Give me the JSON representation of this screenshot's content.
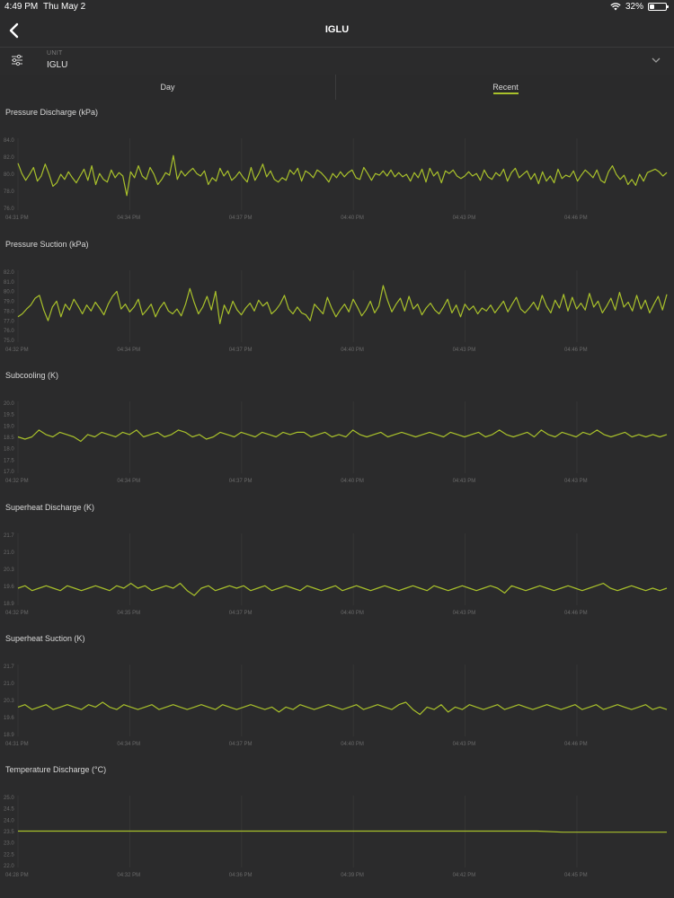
{
  "status_bar": {
    "time": "4:49 PM",
    "date": "Thu May 2",
    "battery_percent": "32%",
    "battery_level": 0.32,
    "icons": [
      "wifi-icon",
      "battery-icon"
    ]
  },
  "nav": {
    "title": "IGLU",
    "back_icon": "chevron-left-icon"
  },
  "unit_selector": {
    "label": "UNIT",
    "value": "IGLU",
    "filter_icon": "sliders-icon",
    "expand_icon": "chevron-down-icon"
  },
  "tabs": [
    {
      "label": "Day",
      "selected": false
    },
    {
      "label": "Recent",
      "selected": true
    }
  ],
  "colors": {
    "background": "#2b2b2c",
    "line": "#a9c12b",
    "accent": "#a9c12b"
  },
  "chart_data": [
    {
      "type": "line",
      "title": "Pressure Discharge (kPa)",
      "yticks": [
        "84.0",
        "82.0",
        "80.0",
        "78.0",
        "76.0"
      ],
      "ylim": [
        76,
        84
      ],
      "xticks": [
        "04:31 PM",
        "04:34 PM",
        "04:37 PM",
        "04:40 PM",
        "04:43 PM",
        "04:46 PM"
      ],
      "series": [
        {
          "values": [
            81.5,
            80.3,
            79.5,
            80.2,
            81.0,
            79.4,
            80.0,
            81.4,
            80.2,
            78.8,
            79.2,
            80.2,
            79.6,
            80.5,
            79.8,
            79.2,
            80.0,
            80.8,
            79.5,
            81.2,
            79.0,
            80.3,
            79.6,
            79.3,
            80.7,
            79.8,
            80.4,
            80.0,
            77.7,
            80.5,
            79.8,
            81.2,
            80.0,
            79.6,
            81.0,
            80.2,
            79.0,
            79.6,
            80.4,
            80.1,
            82.4,
            79.6,
            80.6,
            80.0,
            80.5,
            80.9,
            80.3,
            80.0,
            80.6,
            79.0,
            79.8,
            79.4,
            80.9,
            80.0,
            80.6,
            79.5,
            79.9,
            80.5,
            79.8,
            79.3,
            81.0,
            79.5,
            80.3,
            81.4,
            79.9,
            80.6,
            79.6,
            79.3,
            79.8,
            79.5,
            80.7,
            80.2,
            80.9,
            79.4,
            80.6,
            80.3,
            79.8,
            80.7,
            80.4,
            79.9,
            79.3,
            80.3,
            79.8,
            80.5,
            79.9,
            80.4,
            80.7,
            79.8,
            79.6,
            81.0,
            80.3,
            79.5,
            80.3,
            80.1,
            80.6,
            80.0,
            80.7,
            79.9,
            80.4,
            79.9,
            80.2,
            79.4,
            80.4,
            79.8,
            80.8,
            79.3,
            80.9,
            80.0,
            80.5,
            79.2,
            80.6,
            80.3,
            80.7,
            80.0,
            79.7,
            80.0,
            80.5,
            80.0,
            80.3,
            79.5,
            80.7,
            79.9,
            79.6,
            80.4,
            80.0,
            80.8,
            79.4,
            80.4,
            80.9,
            79.8,
            80.2,
            80.6,
            79.6,
            80.3,
            79.1,
            80.5,
            79.4,
            80.0,
            79.2,
            80.8,
            79.7,
            80.1,
            79.9,
            80.6,
            79.4,
            80.1,
            80.7,
            80.3,
            79.8,
            80.7,
            79.5,
            79.2,
            80.5,
            81.2,
            80.2,
            79.6,
            80.1,
            79.0,
            79.6,
            78.9,
            80.2,
            79.4,
            80.4,
            80.6,
            80.8,
            80.5,
            80.0,
            80.4
          ]
        }
      ]
    },
    {
      "type": "line",
      "title": "Pressure Suction (kPa)",
      "yticks": [
        "82.0",
        "81.0",
        "80.0",
        "79.0",
        "78.0",
        "77.0",
        "76.0",
        "75.0"
      ],
      "ylim": [
        75,
        82
      ],
      "xticks": [
        "04:32 PM",
        "04:34 PM",
        "04:37 PM",
        "04:40 PM",
        "04:43 PM",
        "04:46 PM"
      ],
      "series": [
        {
          "values": [
            77.6,
            77.9,
            78.4,
            78.8,
            79.5,
            79.8,
            78.3,
            77.2,
            78.6,
            79.2,
            77.6,
            78.9,
            78.3,
            79.4,
            78.7,
            77.9,
            78.8,
            78.2,
            79.1,
            78.5,
            77.8,
            78.9,
            79.7,
            80.2,
            78.4,
            78.9,
            78.1,
            78.6,
            79.4,
            77.8,
            78.3,
            78.9,
            77.6,
            78.5,
            79.1,
            78.2,
            77.9,
            78.4,
            77.7,
            78.9,
            80.5,
            79.1,
            77.9,
            78.6,
            79.7,
            78.3,
            80.2,
            76.9,
            78.8,
            77.9,
            79.2,
            78.3,
            77.8,
            78.5,
            79.0,
            78.2,
            79.3,
            78.7,
            79.1,
            77.9,
            78.3,
            78.9,
            79.8,
            78.4,
            77.9,
            78.6,
            78.0,
            77.8,
            77.2,
            78.9,
            78.4,
            77.9,
            79.6,
            78.5,
            77.6,
            78.3,
            78.9,
            78.1,
            79.4,
            78.6,
            77.7,
            78.3,
            79.2,
            78.0,
            78.7,
            80.8,
            79.3,
            78.1,
            78.9,
            79.5,
            78.2,
            79.7,
            78.4,
            78.9,
            77.8,
            78.5,
            79.0,
            78.3,
            77.9,
            78.6,
            79.4,
            78.0,
            78.8,
            77.6,
            78.9,
            78.3,
            78.7,
            77.9,
            78.5,
            78.2,
            78.8,
            78.0,
            78.6,
            79.2,
            78.1,
            78.9,
            79.6,
            78.4,
            78.0,
            78.5,
            79.1,
            78.3,
            79.8,
            78.7,
            78.0,
            79.3,
            78.5,
            79.9,
            78.2,
            79.6,
            78.4,
            79.0,
            78.3,
            80.0,
            78.6,
            79.2,
            78.0,
            78.7,
            79.5,
            78.3,
            80.1,
            78.6,
            79.1,
            78.2,
            79.8,
            78.4,
            79.3,
            78.0,
            78.9,
            79.7,
            78.3,
            79.9
          ]
        }
      ]
    },
    {
      "type": "line",
      "title": "Subcooling (K)",
      "yticks": [
        "20.0",
        "19.5",
        "19.0",
        "18.5",
        "18.0",
        "17.5",
        "17.0"
      ],
      "ylim": [
        17,
        20
      ],
      "xticks": [
        "04:32 PM",
        "04:34 PM",
        "04:37 PM",
        "04:40 PM",
        "04:43 PM",
        "04:43 PM"
      ],
      "series": [
        {
          "values": [
            18.6,
            18.5,
            18.6,
            18.9,
            18.7,
            18.6,
            18.8,
            18.7,
            18.6,
            18.4,
            18.7,
            18.6,
            18.8,
            18.7,
            18.6,
            18.8,
            18.7,
            18.9,
            18.6,
            18.7,
            18.8,
            18.6,
            18.7,
            18.9,
            18.8,
            18.6,
            18.7,
            18.5,
            18.6,
            18.8,
            18.7,
            18.6,
            18.8,
            18.7,
            18.6,
            18.8,
            18.7,
            18.6,
            18.8,
            18.7,
            18.8,
            18.8,
            18.6,
            18.7,
            18.8,
            18.6,
            18.7,
            18.6,
            18.9,
            18.7,
            18.6,
            18.7,
            18.8,
            18.6,
            18.7,
            18.8,
            18.7,
            18.6,
            18.7,
            18.8,
            18.7,
            18.6,
            18.8,
            18.7,
            18.6,
            18.7,
            18.8,
            18.6,
            18.7,
            18.9,
            18.7,
            18.6,
            18.7,
            18.8,
            18.6,
            18.9,
            18.7,
            18.6,
            18.8,
            18.7,
            18.6,
            18.8,
            18.7,
            18.9,
            18.7,
            18.6,
            18.7,
            18.8,
            18.6,
            18.7,
            18.6,
            18.7,
            18.6,
            18.7
          ]
        }
      ]
    },
    {
      "type": "line",
      "title": "Superheat Discharge (K)",
      "yticks": [
        "21.7",
        "21.0",
        "20.3",
        "19.6",
        "18.9"
      ],
      "ylim": [
        18.9,
        21.7
      ],
      "xticks": [
        "04:32 PM",
        "04:35 PM",
        "04:37 PM",
        "04:40 PM",
        "04:43 PM",
        "04:46 PM"
      ],
      "series": [
        {
          "values": [
            19.6,
            19.7,
            19.5,
            19.6,
            19.7,
            19.6,
            19.5,
            19.7,
            19.6,
            19.5,
            19.6,
            19.7,
            19.6,
            19.5,
            19.7,
            19.6,
            19.8,
            19.6,
            19.7,
            19.5,
            19.6,
            19.7,
            19.6,
            19.8,
            19.5,
            19.3,
            19.6,
            19.7,
            19.5,
            19.6,
            19.7,
            19.6,
            19.7,
            19.5,
            19.6,
            19.7,
            19.5,
            19.6,
            19.7,
            19.6,
            19.5,
            19.7,
            19.6,
            19.5,
            19.6,
            19.7,
            19.5,
            19.6,
            19.7,
            19.6,
            19.5,
            19.6,
            19.7,
            19.6,
            19.5,
            19.6,
            19.7,
            19.6,
            19.5,
            19.7,
            19.6,
            19.5,
            19.6,
            19.7,
            19.6,
            19.5,
            19.6,
            19.7,
            19.6,
            19.4,
            19.7,
            19.6,
            19.5,
            19.6,
            19.7,
            19.6,
            19.5,
            19.6,
            19.7,
            19.6,
            19.5,
            19.6,
            19.7,
            19.8,
            19.6,
            19.5,
            19.6,
            19.7,
            19.6,
            19.5,
            19.6,
            19.5,
            19.6
          ]
        }
      ]
    },
    {
      "type": "line",
      "title": "Superheat Suction (K)",
      "yticks": [
        "21.7",
        "21.0",
        "20.3",
        "19.6",
        "18.9"
      ],
      "ylim": [
        18.9,
        21.7
      ],
      "xticks": [
        "04:31 PM",
        "04:34 PM",
        "04:37 PM",
        "04:40 PM",
        "04:43 PM",
        "04:46 PM"
      ],
      "series": [
        {
          "values": [
            20.1,
            20.2,
            20.0,
            20.1,
            20.2,
            20.0,
            20.1,
            20.2,
            20.1,
            20.0,
            20.2,
            20.1,
            20.3,
            20.1,
            20.0,
            20.2,
            20.1,
            20.0,
            20.1,
            20.2,
            20.0,
            20.1,
            20.2,
            20.1,
            20.0,
            20.1,
            20.2,
            20.1,
            20.0,
            20.2,
            20.1,
            20.0,
            20.1,
            20.2,
            20.1,
            20.0,
            20.1,
            19.9,
            20.1,
            20.0,
            20.2,
            20.1,
            20.0,
            20.1,
            20.2,
            20.1,
            20.0,
            20.1,
            20.2,
            20.0,
            20.1,
            20.2,
            20.1,
            20.0,
            20.2,
            20.3,
            20.0,
            19.8,
            20.1,
            20.0,
            20.2,
            19.9,
            20.1,
            20.0,
            20.2,
            20.1,
            20.0,
            20.1,
            20.2,
            20.0,
            20.1,
            20.2,
            20.1,
            20.0,
            20.1,
            20.2,
            20.1,
            20.0,
            20.1,
            20.2,
            20.0,
            20.1,
            20.2,
            20.0,
            20.1,
            20.2,
            20.1,
            20.0,
            20.1,
            20.2,
            20.0,
            20.1,
            20.0
          ]
        }
      ]
    },
    {
      "type": "line",
      "title": "Temperature Discharge (°C)",
      "yticks": [
        "25.0",
        "24.5",
        "24.0",
        "23.5",
        "23.0",
        "22.5",
        "22.0"
      ],
      "ylim": [
        22,
        25
      ],
      "xticks": [
        "04:28 PM",
        "04:32 PM",
        "04:36 PM",
        "04:39 PM",
        "04:42 PM",
        "04:45 PM"
      ],
      "series": [
        {
          "values": [
            23.6,
            23.6,
            23.6,
            23.6,
            23.6,
            23.6,
            23.6,
            23.6,
            23.6,
            23.6,
            23.6,
            23.6,
            23.6,
            23.6,
            23.6,
            23.6,
            23.6,
            23.6,
            23.6,
            23.6,
            23.6,
            23.55,
            23.55,
            23.55,
            23.55,
            23.55
          ]
        }
      ]
    }
  ]
}
